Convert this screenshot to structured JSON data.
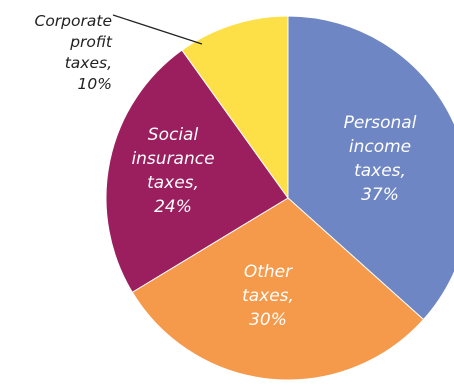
{
  "chart_data": {
    "type": "pie",
    "slices": [
      {
        "label": [
          "Personal",
          "income",
          "taxes,",
          "37%"
        ],
        "value": 37,
        "color": "#6f86c4"
      },
      {
        "label": [
          "Other",
          "taxes,",
          "30%"
        ],
        "value": 30,
        "color": "#f5994a"
      },
      {
        "label": [
          "Social",
          "insurance",
          "taxes,",
          "24%"
        ],
        "value": 24,
        "color": "#9b1f5e"
      },
      {
        "label": [
          "Corporate",
          "profit",
          "taxes,",
          "10%"
        ],
        "value": 10,
        "color": "#fde047",
        "label_outside": true
      }
    ]
  }
}
